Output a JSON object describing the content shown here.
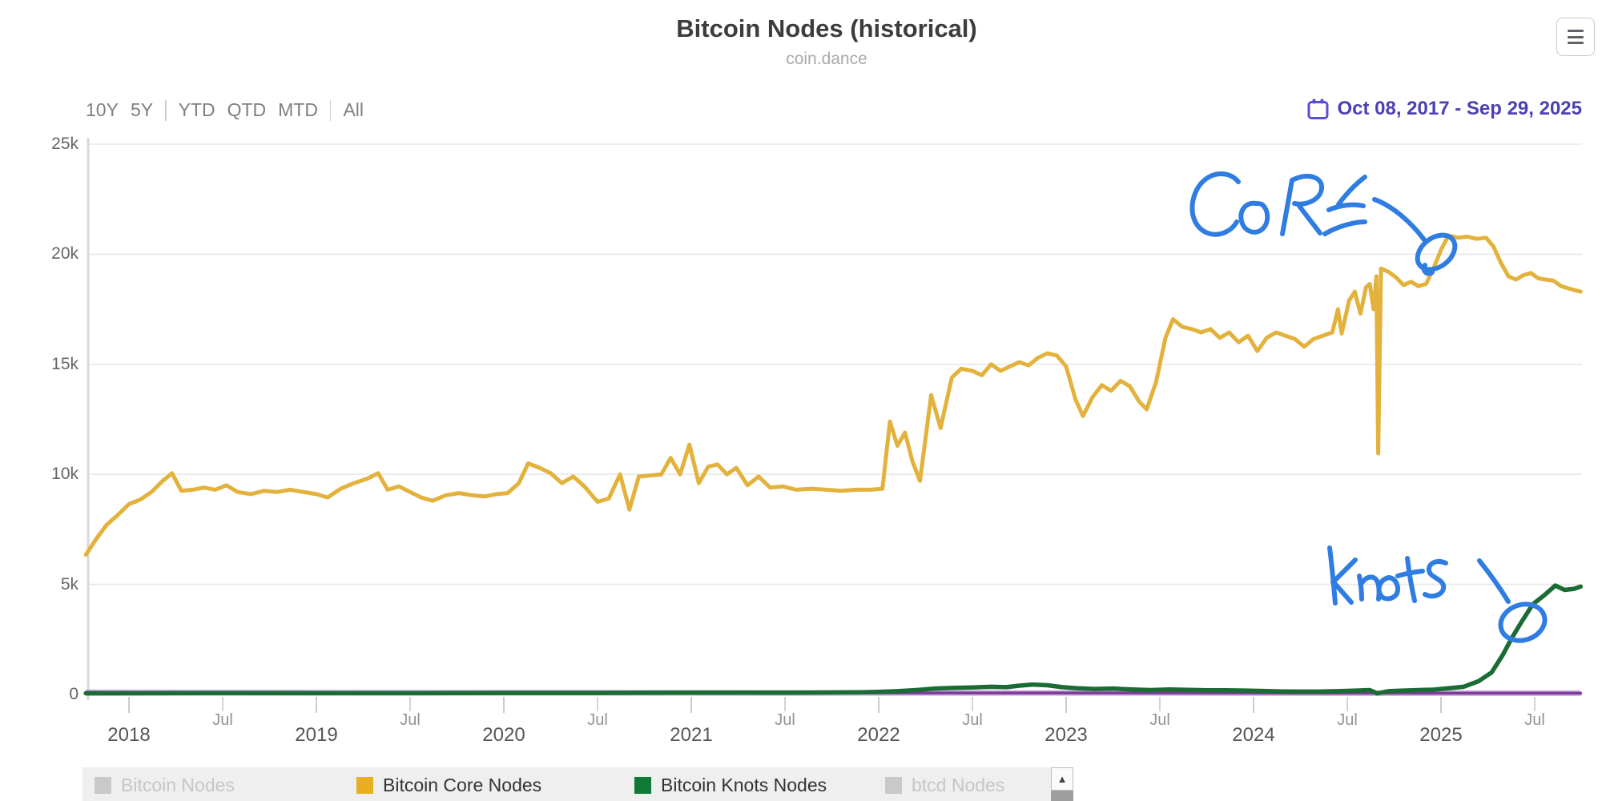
{
  "header": {
    "title": "Bitcoin Nodes (historical)",
    "subtitle": "coin.dance"
  },
  "range_selector": {
    "groups": [
      [
        "10Y",
        "5Y"
      ],
      [
        "YTD",
        "QTD",
        "MTD"
      ],
      [
        "All"
      ]
    ]
  },
  "date_range": {
    "label": "Oct 08, 2017 - Sep 29, 2025",
    "color": "#4b40b4",
    "icon": "calendar-icon"
  },
  "menu": {
    "icon": "hamburger-menu-icon"
  },
  "legend": {
    "items": [
      {
        "label": "Bitcoin Nodes",
        "color": "#c9c9c9",
        "enabled": false
      },
      {
        "label": "Bitcoin Core Nodes",
        "color": "#e8b021",
        "enabled": true
      },
      {
        "label": "Bitcoin Knots Nodes",
        "color": "#0e7a35",
        "enabled": true
      },
      {
        "label": "btcd Nodes",
        "color": "#c9c9c9",
        "enabled": false
      }
    ],
    "scrollbar": {
      "up_arrow": "▲"
    }
  },
  "chart_data": {
    "type": "line",
    "title": "Bitcoin Nodes (historical)",
    "subtitle": "coin.dance",
    "x_range": [
      2017.77,
      2025.745
    ],
    "x_major_tick_labels": [
      "2018",
      "2019",
      "2020",
      "2021",
      "2022",
      "2023",
      "2024",
      "2025"
    ],
    "x_minor_tick_label": "Jul",
    "y_tick_labels": [
      "0",
      "5k",
      "10k",
      "15k",
      "20k",
      "25k"
    ],
    "ylim_k": [
      0,
      25
    ],
    "values_unit": "thousands of nodes",
    "grid": true,
    "legend_position": "bottom",
    "series": [
      {
        "name": "Bitcoin Core Nodes",
        "color": "#e3b23c",
        "points": [
          [
            2017.77,
            6.35
          ],
          [
            2017.82,
            7.0
          ],
          [
            2017.88,
            7.7
          ],
          [
            2017.94,
            8.15
          ],
          [
            2018.0,
            8.65
          ],
          [
            2018.06,
            8.85
          ],
          [
            2018.12,
            9.2
          ],
          [
            2018.18,
            9.7
          ],
          [
            2018.23,
            10.05
          ],
          [
            2018.28,
            9.25
          ],
          [
            2018.34,
            9.3
          ],
          [
            2018.4,
            9.4
          ],
          [
            2018.46,
            9.3
          ],
          [
            2018.52,
            9.5
          ],
          [
            2018.58,
            9.2
          ],
          [
            2018.65,
            9.1
          ],
          [
            2018.72,
            9.25
          ],
          [
            2018.79,
            9.2
          ],
          [
            2018.86,
            9.3
          ],
          [
            2018.93,
            9.2
          ],
          [
            2019.0,
            9.1
          ],
          [
            2019.06,
            8.95
          ],
          [
            2019.13,
            9.35
          ],
          [
            2019.2,
            9.6
          ],
          [
            2019.27,
            9.8
          ],
          [
            2019.33,
            10.05
          ],
          [
            2019.38,
            9.3
          ],
          [
            2019.44,
            9.45
          ],
          [
            2019.5,
            9.2
          ],
          [
            2019.56,
            8.95
          ],
          [
            2019.62,
            8.8
          ],
          [
            2019.69,
            9.05
          ],
          [
            2019.76,
            9.15
          ],
          [
            2019.83,
            9.05
          ],
          [
            2019.9,
            9.0
          ],
          [
            2019.96,
            9.1
          ],
          [
            2020.02,
            9.15
          ],
          [
            2020.08,
            9.6
          ],
          [
            2020.13,
            10.5
          ],
          [
            2020.19,
            10.3
          ],
          [
            2020.25,
            10.05
          ],
          [
            2020.31,
            9.6
          ],
          [
            2020.37,
            9.9
          ],
          [
            2020.43,
            9.45
          ],
          [
            2020.5,
            8.75
          ],
          [
            2020.56,
            8.9
          ],
          [
            2020.62,
            10.0
          ],
          [
            2020.67,
            8.4
          ],
          [
            2020.72,
            9.9
          ],
          [
            2020.78,
            9.95
          ],
          [
            2020.84,
            10.0
          ],
          [
            2020.89,
            10.75
          ],
          [
            2020.94,
            10.0
          ],
          [
            2020.99,
            11.35
          ],
          [
            2021.04,
            9.6
          ],
          [
            2021.09,
            10.35
          ],
          [
            2021.14,
            10.45
          ],
          [
            2021.19,
            10.0
          ],
          [
            2021.24,
            10.3
          ],
          [
            2021.3,
            9.5
          ],
          [
            2021.36,
            9.9
          ],
          [
            2021.42,
            9.4
          ],
          [
            2021.49,
            9.45
          ],
          [
            2021.56,
            9.3
          ],
          [
            2021.64,
            9.35
          ],
          [
            2021.72,
            9.3
          ],
          [
            2021.8,
            9.25
          ],
          [
            2021.88,
            9.3
          ],
          [
            2021.96,
            9.3
          ],
          [
            2022.02,
            9.35
          ],
          [
            2022.06,
            12.4
          ],
          [
            2022.1,
            11.3
          ],
          [
            2022.14,
            11.9
          ],
          [
            2022.18,
            10.6
          ],
          [
            2022.22,
            9.7
          ],
          [
            2022.28,
            13.6
          ],
          [
            2022.33,
            12.1
          ],
          [
            2022.39,
            14.4
          ],
          [
            2022.44,
            14.8
          ],
          [
            2022.5,
            14.7
          ],
          [
            2022.55,
            14.5
          ],
          [
            2022.6,
            15.0
          ],
          [
            2022.65,
            14.7
          ],
          [
            2022.7,
            14.9
          ],
          [
            2022.75,
            15.1
          ],
          [
            2022.8,
            14.95
          ],
          [
            2022.85,
            15.3
          ],
          [
            2022.9,
            15.5
          ],
          [
            2022.95,
            15.4
          ],
          [
            2023.0,
            14.9
          ],
          [
            2023.05,
            13.4
          ],
          [
            2023.09,
            12.65
          ],
          [
            2023.14,
            13.5
          ],
          [
            2023.19,
            14.05
          ],
          [
            2023.24,
            13.8
          ],
          [
            2023.29,
            14.25
          ],
          [
            2023.34,
            14.0
          ],
          [
            2023.39,
            13.3
          ],
          [
            2023.43,
            12.95
          ],
          [
            2023.48,
            14.2
          ],
          [
            2023.53,
            16.2
          ],
          [
            2023.57,
            17.05
          ],
          [
            2023.62,
            16.7
          ],
          [
            2023.67,
            16.6
          ],
          [
            2023.72,
            16.45
          ],
          [
            2023.77,
            16.6
          ],
          [
            2023.82,
            16.2
          ],
          [
            2023.87,
            16.45
          ],
          [
            2023.92,
            16.0
          ],
          [
            2023.97,
            16.3
          ],
          [
            2024.02,
            15.6
          ],
          [
            2024.07,
            16.2
          ],
          [
            2024.12,
            16.45
          ],
          [
            2024.17,
            16.3
          ],
          [
            2024.22,
            16.15
          ],
          [
            2024.27,
            15.8
          ],
          [
            2024.32,
            16.15
          ],
          [
            2024.37,
            16.3
          ],
          [
            2024.42,
            16.45
          ],
          [
            2024.45,
            17.5
          ],
          [
            2024.47,
            16.4
          ],
          [
            2024.51,
            17.9
          ],
          [
            2024.54,
            18.3
          ],
          [
            2024.57,
            17.3
          ],
          [
            2024.6,
            18.5
          ],
          [
            2024.62,
            18.65
          ],
          [
            2024.64,
            17.5
          ],
          [
            2024.655,
            19.0
          ],
          [
            2024.665,
            10.95
          ],
          [
            2024.68,
            19.35
          ],
          [
            2024.72,
            19.2
          ],
          [
            2024.76,
            18.95
          ],
          [
            2024.8,
            18.6
          ],
          [
            2024.84,
            18.75
          ],
          [
            2024.88,
            18.55
          ],
          [
            2024.92,
            18.65
          ],
          [
            2024.96,
            19.35
          ],
          [
            2025.0,
            20.2
          ],
          [
            2025.04,
            20.85
          ],
          [
            2025.09,
            20.75
          ],
          [
            2025.14,
            20.8
          ],
          [
            2025.19,
            20.7
          ],
          [
            2025.24,
            20.75
          ],
          [
            2025.28,
            20.35
          ],
          [
            2025.32,
            19.6
          ],
          [
            2025.36,
            19.0
          ],
          [
            2025.4,
            18.85
          ],
          [
            2025.44,
            19.05
          ],
          [
            2025.48,
            19.15
          ],
          [
            2025.52,
            18.9
          ],
          [
            2025.56,
            18.85
          ],
          [
            2025.6,
            18.8
          ],
          [
            2025.64,
            18.55
          ],
          [
            2025.68,
            18.45
          ],
          [
            2025.72,
            18.35
          ],
          [
            2025.745,
            18.3
          ]
        ]
      },
      {
        "name": "Bitcoin Knots Nodes",
        "color": "#1a6b34",
        "points": [
          [
            2017.77,
            0.05
          ],
          [
            2018.5,
            0.06
          ],
          [
            2019.0,
            0.06
          ],
          [
            2019.5,
            0.06
          ],
          [
            2020.0,
            0.07
          ],
          [
            2020.5,
            0.07
          ],
          [
            2021.0,
            0.08
          ],
          [
            2021.5,
            0.08
          ],
          [
            2021.9,
            0.1
          ],
          [
            2022.0,
            0.12
          ],
          [
            2022.1,
            0.15
          ],
          [
            2022.2,
            0.2
          ],
          [
            2022.3,
            0.27
          ],
          [
            2022.4,
            0.3
          ],
          [
            2022.5,
            0.32
          ],
          [
            2022.6,
            0.35
          ],
          [
            2022.68,
            0.33
          ],
          [
            2022.75,
            0.4
          ],
          [
            2022.82,
            0.45
          ],
          [
            2022.9,
            0.42
          ],
          [
            2022.98,
            0.33
          ],
          [
            2023.06,
            0.28
          ],
          [
            2023.15,
            0.25
          ],
          [
            2023.25,
            0.27
          ],
          [
            2023.35,
            0.23
          ],
          [
            2023.45,
            0.2
          ],
          [
            2023.55,
            0.23
          ],
          [
            2023.65,
            0.21
          ],
          [
            2023.75,
            0.19
          ],
          [
            2023.85,
            0.19
          ],
          [
            2023.95,
            0.18
          ],
          [
            2024.05,
            0.16
          ],
          [
            2024.15,
            0.14
          ],
          [
            2024.25,
            0.13
          ],
          [
            2024.35,
            0.13
          ],
          [
            2024.45,
            0.15
          ],
          [
            2024.55,
            0.18
          ],
          [
            2024.62,
            0.2
          ],
          [
            2024.66,
            0.05
          ],
          [
            2024.72,
            0.15
          ],
          [
            2024.8,
            0.18
          ],
          [
            2024.88,
            0.2
          ],
          [
            2024.96,
            0.22
          ],
          [
            2025.04,
            0.28
          ],
          [
            2025.12,
            0.35
          ],
          [
            2025.2,
            0.6
          ],
          [
            2025.27,
            1.0
          ],
          [
            2025.33,
            1.8
          ],
          [
            2025.38,
            2.6
          ],
          [
            2025.43,
            3.3
          ],
          [
            2025.49,
            4.1
          ],
          [
            2025.55,
            4.5
          ],
          [
            2025.61,
            4.95
          ],
          [
            2025.66,
            4.75
          ],
          [
            2025.71,
            4.8
          ],
          [
            2025.745,
            4.9
          ]
        ]
      },
      {
        "name": "unlabeled series (flat purple line near zero)",
        "color": "#7d3c98",
        "points": [
          [
            2017.77,
            0.1
          ],
          [
            2018.5,
            0.09
          ],
          [
            2019.5,
            0.08
          ],
          [
            2020.5,
            0.08
          ],
          [
            2021.5,
            0.07
          ],
          [
            2022.5,
            0.07
          ],
          [
            2023.5,
            0.07
          ],
          [
            2024.5,
            0.06
          ],
          [
            2025.745,
            0.06
          ]
        ]
      }
    ],
    "annotations": [
      {
        "text": "CORE",
        "style": "handwritten",
        "color": "#2f7de2",
        "target": "circled point on Bitcoin Core Nodes line at ~20k, early 2025"
      },
      {
        "text": "knots",
        "style": "handwritten",
        "color": "#2f7de2",
        "target": "circled point on Bitcoin Knots Nodes line at ~3k during steep 2025 rise"
      }
    ]
  }
}
